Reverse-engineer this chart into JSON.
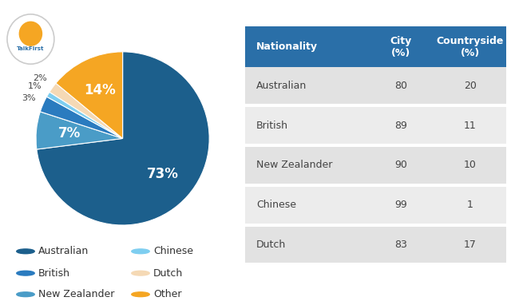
{
  "pie_labels": [
    "Australian",
    "New Zealander",
    "British",
    "Chinese",
    "Dutch",
    "Other"
  ],
  "pie_values": [
    73,
    7,
    3,
    1,
    2,
    14
  ],
  "pie_colors": [
    "#1c5f8c",
    "#4a9cc7",
    "#2a7bbf",
    "#7ecef0",
    "#f5d9b5",
    "#f5a623"
  ],
  "pie_text_color": "white",
  "legend_labels": [
    "Australian",
    "British",
    "New Zealander",
    "Chinese",
    "Dutch",
    "Other"
  ],
  "legend_colors": [
    "#1c5f8c",
    "#2a7bbf",
    "#4a9cc7",
    "#7ecef0",
    "#f5d9b5",
    "#f5a623"
  ],
  "table_header": [
    "Nationality",
    "City\n(%)",
    "Countryside\n(%)"
  ],
  "table_header_bg": "#2a6fa8",
  "table_header_fg": "white",
  "table_rows": [
    [
      "Australian",
      "80",
      "20"
    ],
    [
      "British",
      "89",
      "11"
    ],
    [
      "New Zealander",
      "90",
      "10"
    ],
    [
      "Chinese",
      "99",
      "1"
    ],
    [
      "Dutch",
      "83",
      "17"
    ]
  ],
  "table_row_bg": [
    "#e2e2e2",
    "#ececec",
    "#e2e2e2",
    "#ececec",
    "#e2e2e2"
  ],
  "table_text_color": "#444444",
  "bg_color": "#ffffff",
  "font_size_pie_large": 12,
  "font_size_pie_small": 8,
  "font_size_table_header": 9,
  "font_size_table_row": 9,
  "font_size_legend": 9
}
